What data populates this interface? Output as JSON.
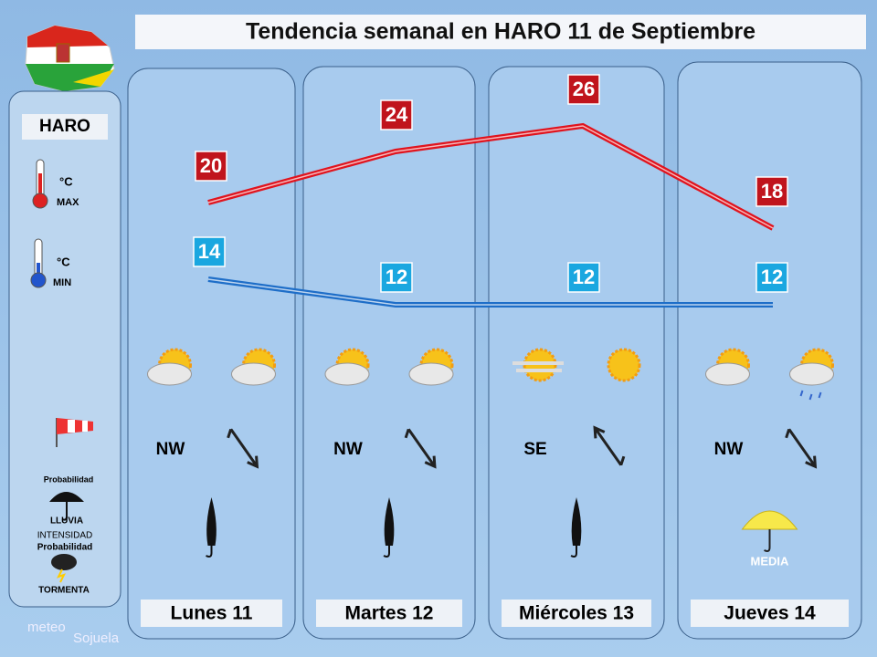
{
  "header": {
    "title": "Tendencia semanal en HARO 11 de Septiembre"
  },
  "legend": {
    "location": "HARO",
    "max_unit": "°C",
    "max_label": "MAX",
    "min_unit": "°C",
    "min_label": "MIN",
    "rain_prob": "Probabilidad",
    "rain": "LLUVIA",
    "intensity": "INTENSIDAD",
    "storm_prob": "Probabilidad",
    "storm": "TORMENTA"
  },
  "days": [
    {
      "name": "Lunes 11",
      "max": 20,
      "min": 14,
      "wind": "NW"
    },
    {
      "name": "Martes 12",
      "max": 24,
      "min": 12,
      "wind": "NW"
    },
    {
      "name": "Miércoles 13",
      "max": 26,
      "min": 12,
      "wind": "SE"
    },
    {
      "name": "Jueves 14",
      "max": 18,
      "min": 12,
      "wind": "NW",
      "rain": "MEDIA"
    }
  ],
  "footer": {
    "logo_top": "meteo",
    "logo_bottom": "Sojuela"
  }
}
